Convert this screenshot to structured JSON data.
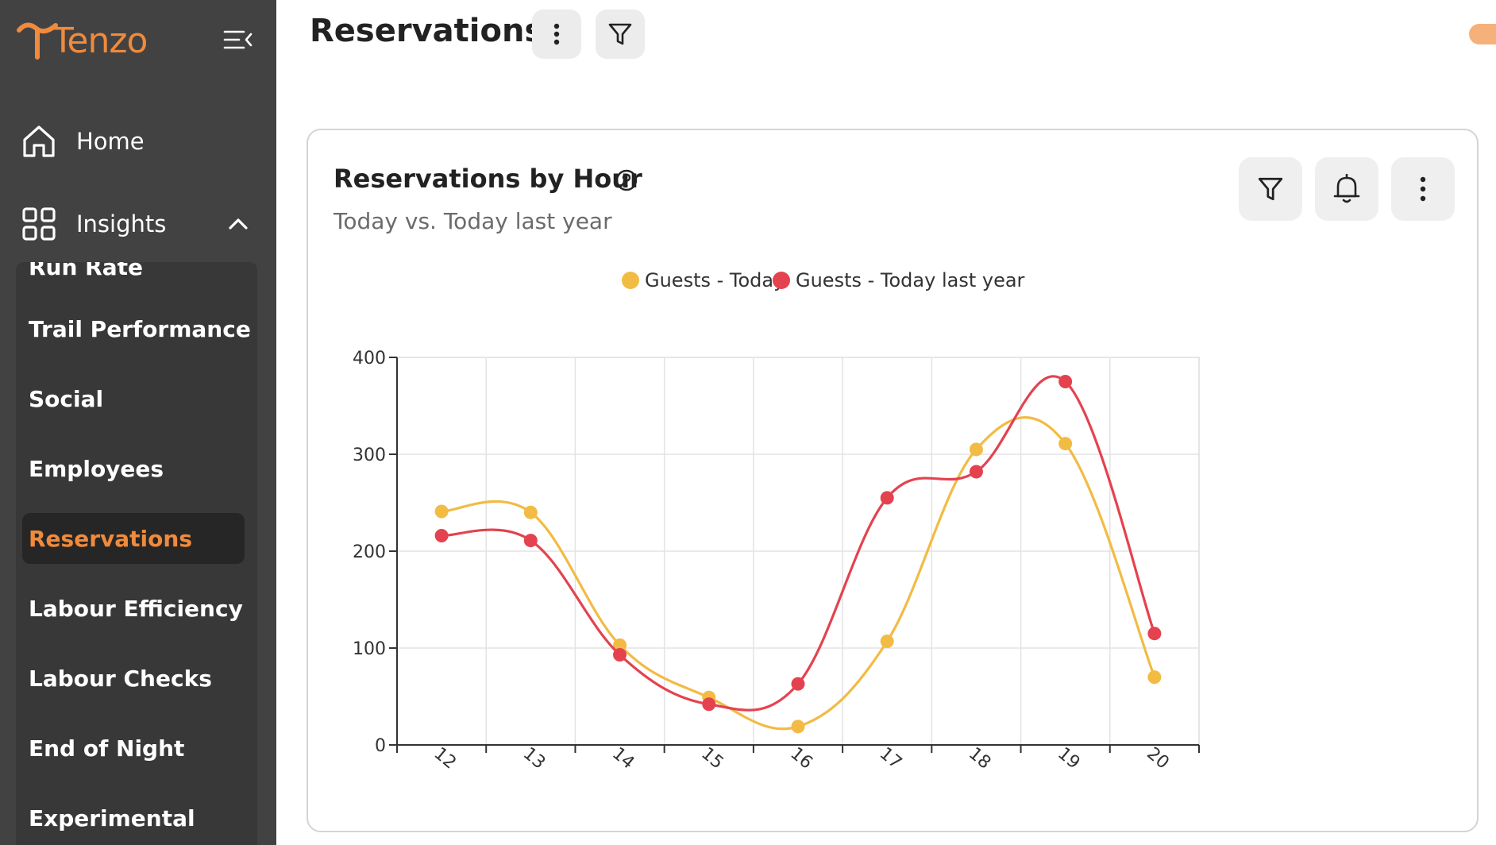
{
  "app": {
    "brand": "Tenzo"
  },
  "sidebar": {
    "home_label": "Home",
    "insights_label": "Insights",
    "partial_item": "Run Rate",
    "items": [
      {
        "label": "Trail Performance",
        "active": false
      },
      {
        "label": "Social",
        "active": false
      },
      {
        "label": "Employees",
        "active": false
      },
      {
        "label": "Reservations",
        "active": true
      },
      {
        "label": "Labour Efficiency",
        "active": false
      },
      {
        "label": "Labour Checks",
        "active": false
      },
      {
        "label": "End of Night",
        "active": false
      },
      {
        "label": "Experimental",
        "active": false
      }
    ]
  },
  "header": {
    "title": "Reservations"
  },
  "card": {
    "title": "Reservations by Hour",
    "subtitle": "Today vs. Today last year"
  },
  "colors": {
    "accent": "#f08a3c",
    "series_today": "#f2bb44",
    "series_last_year": "#e4424f"
  },
  "chart_data": {
    "type": "line",
    "title": "",
    "xlabel": "",
    "ylabel": "",
    "categories": [
      "12",
      "13",
      "14",
      "15",
      "16",
      "17",
      "18",
      "19",
      "20"
    ],
    "ylim": [
      0,
      400
    ],
    "yticks": [
      "0",
      "100",
      "200",
      "300",
      "400"
    ],
    "grid": true,
    "legend": "top-center",
    "series": [
      {
        "name": "Guests - Today",
        "color": "#f2bb44",
        "values": [
          241,
          240,
          103,
          49,
          19,
          107,
          305,
          311,
          70
        ]
      },
      {
        "name": "Guests - Today last year",
        "color": "#e4424f",
        "values": [
          216,
          211,
          93,
          42,
          63,
          255,
          282,
          375,
          115
        ]
      }
    ]
  }
}
